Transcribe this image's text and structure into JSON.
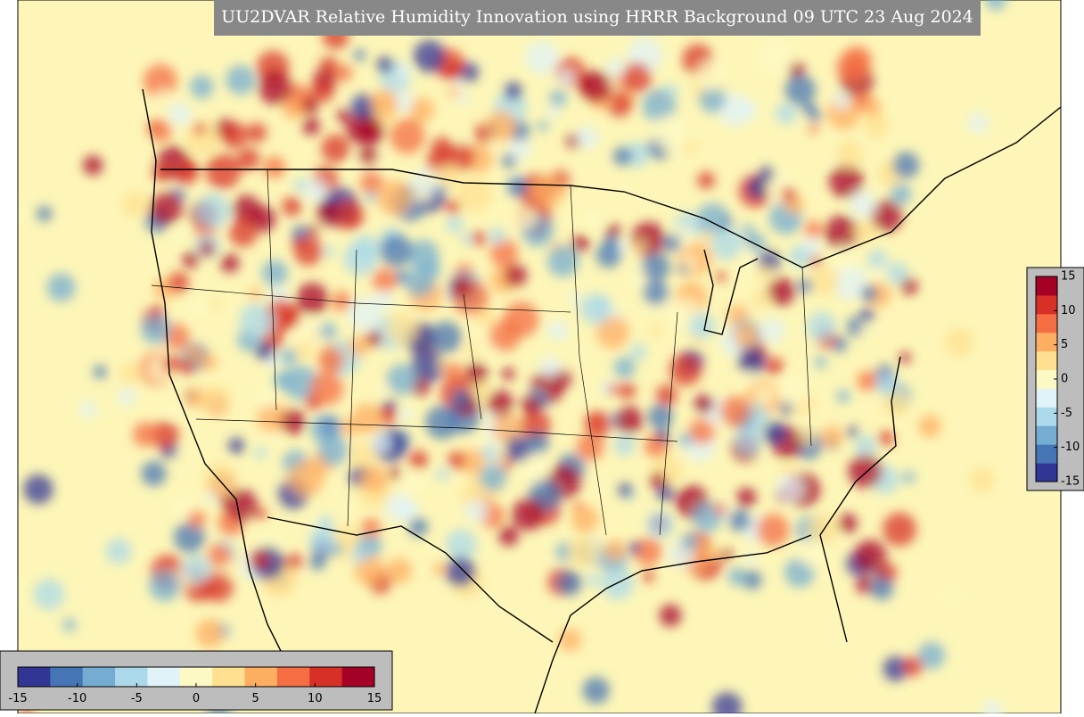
{
  "title": "UU2DVAR Relative Humidity Innovation using HRRR Background 09 UTC 23 Aug 2024",
  "palette": [
    "#313695",
    "#4575b4",
    "#74add1",
    "#abd9e9",
    "#e0f3f8",
    "#fdf9c4",
    "#fee090",
    "#fdae61",
    "#f46d43",
    "#d73027",
    "#a50026"
  ],
  "colorbars": [
    {
      "orientation": "horizontal",
      "lim": [
        -15,
        15
      ],
      "ticks": [
        -15,
        -10,
        -5,
        0,
        5,
        10,
        15
      ]
    },
    {
      "orientation": "vertical",
      "lim": [
        -15,
        15
      ],
      "ticks": [
        -15,
        -10,
        -5,
        0,
        5,
        10,
        15
      ]
    }
  ]
}
